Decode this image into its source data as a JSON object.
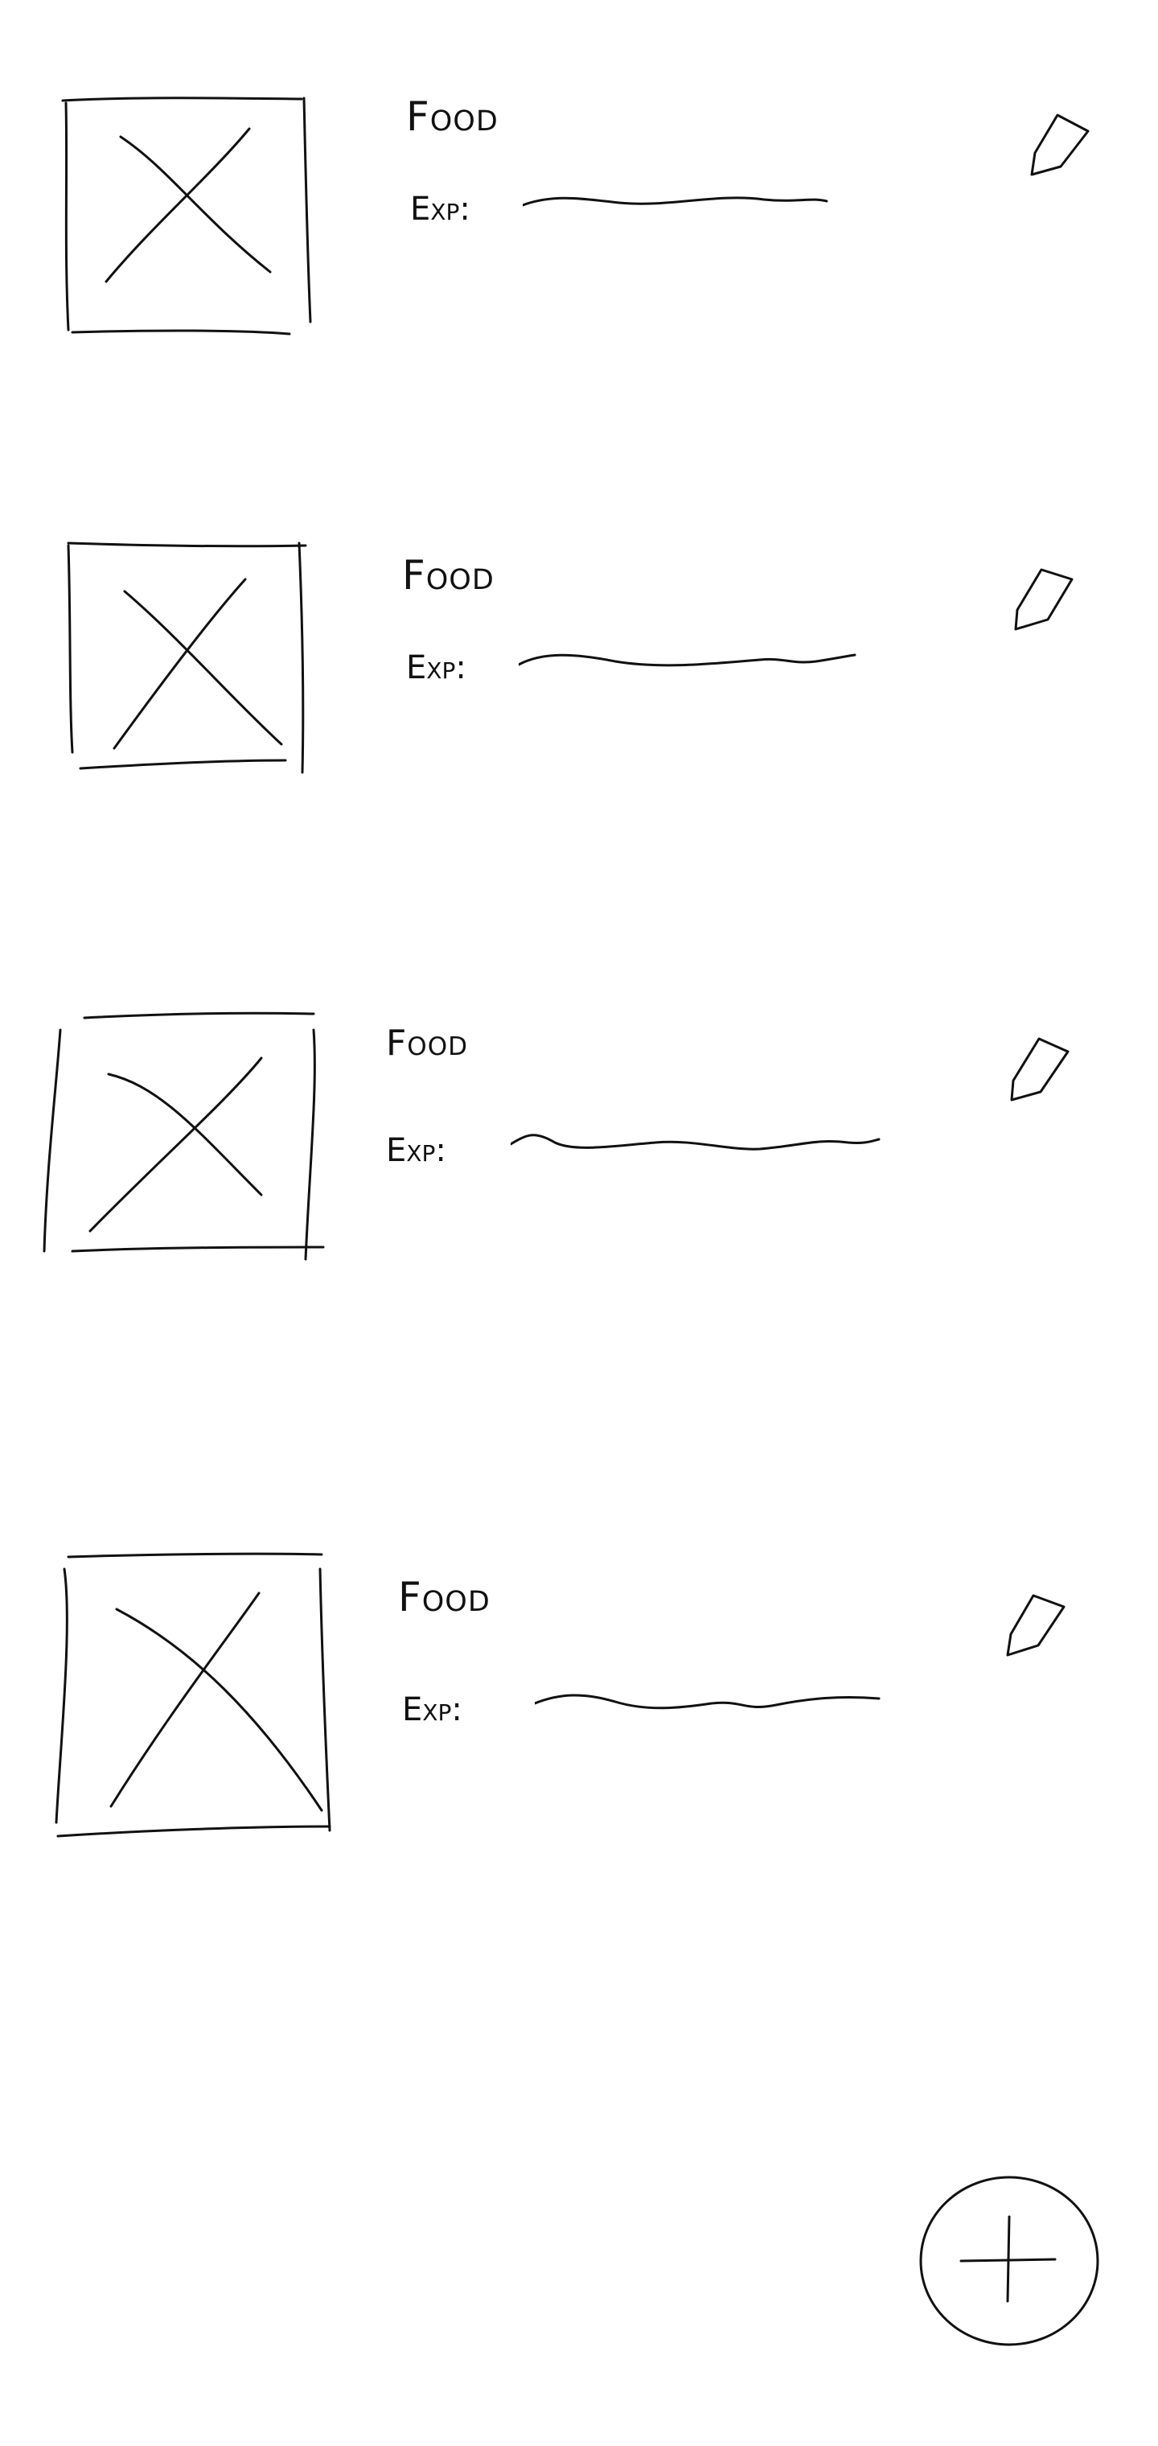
{
  "food_list": {
    "items": [
      {
        "name": "Food",
        "exp_label": "Exp:",
        "image_icon": "image-placeholder-icon",
        "edit_icon": "pencil-icon"
      },
      {
        "name": "Food",
        "exp_label": "Exp:",
        "image_icon": "image-placeholder-icon",
        "edit_icon": "pencil-icon"
      },
      {
        "name": "Food",
        "exp_label": "Exp:",
        "image_icon": "image-placeholder-icon",
        "edit_icon": "pencil-icon"
      },
      {
        "name": "Food",
        "exp_label": "Exp:",
        "image_icon": "image-placeholder-icon",
        "edit_icon": "pencil-icon"
      }
    ]
  },
  "fab": {
    "icon": "plus-icon"
  }
}
